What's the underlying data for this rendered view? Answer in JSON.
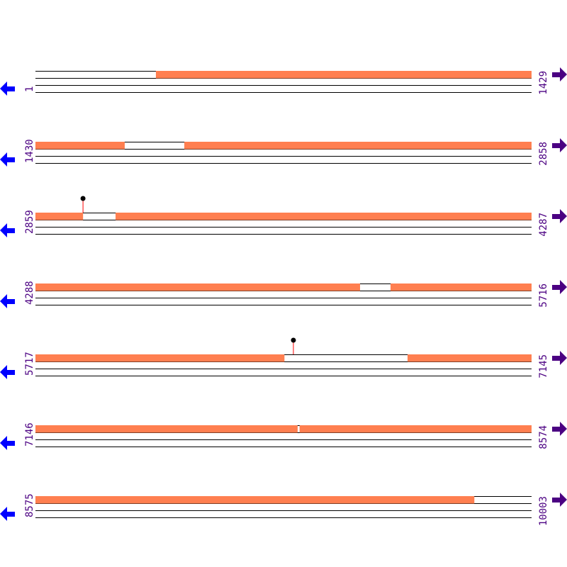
{
  "colors": {
    "feature": "#ff7f50",
    "line": "#000000",
    "label": "#4b0082",
    "left_arrow": "#0000ff",
    "right_arrow": "#4b0082",
    "stem": "#ff0000"
  },
  "icons": {
    "left": "arrow-left-icon",
    "right": "arrow-right-icon"
  },
  "rows": [
    {
      "start": "1",
      "end": "1429",
      "features": [
        [
          348,
          1429
        ]
      ],
      "markers": []
    },
    {
      "start": "1430",
      "end": "2858",
      "features": [
        [
          1430,
          1687
        ],
        [
          1859,
          2858
        ]
      ],
      "markers": []
    },
    {
      "start": "2859",
      "end": "4287",
      "features": [
        [
          2859,
          2996
        ],
        [
          3090,
          4287
        ]
      ],
      "markers": [
        2996
      ]
    },
    {
      "start": "4288",
      "end": "5716",
      "features": [
        [
          4288,
          5223
        ],
        [
          5311,
          5716
        ]
      ],
      "markers": []
    },
    {
      "start": "5717",
      "end": "7145",
      "features": [
        [
          5717,
          6434
        ],
        [
          6789,
          7145
        ]
      ],
      "markers": [
        6460
      ]
    },
    {
      "start": "7146",
      "end": "8574",
      "features": [
        [
          7146,
          7901
        ],
        [
          7907,
          8574
        ]
      ],
      "markers": []
    },
    {
      "start": "8575",
      "end": "10003",
      "features": [
        [
          8575,
          9839
        ]
      ],
      "markers": []
    }
  ]
}
